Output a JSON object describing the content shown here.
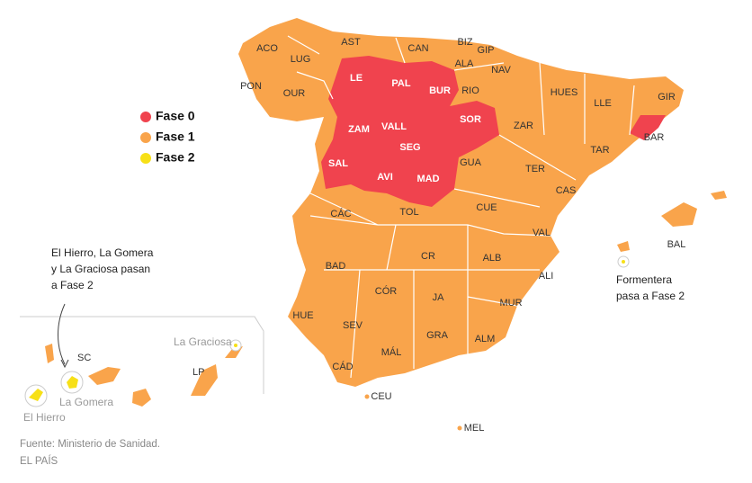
{
  "legend": {
    "items": [
      {
        "label": "Fase 0",
        "color": "#f0434e"
      },
      {
        "label": "Fase 1",
        "color": "#f9a44b"
      },
      {
        "label": "Fase 2",
        "color": "#f7e017"
      }
    ]
  },
  "provinces": [
    "ACO",
    "AST",
    "CAN",
    "BIZ",
    "GIP",
    "ALA",
    "LUG",
    "NAV",
    "PON",
    "OUR",
    "LE",
    "PAL",
    "BUR",
    "RIO",
    "HUES",
    "GIR",
    "LLE",
    "SOR",
    "ZAR",
    "ZAM",
    "VALL",
    "SEG",
    "BAR",
    "TAR",
    "SAL",
    "GUA",
    "TER",
    "AVI",
    "MAD",
    "CAS",
    "CÁC",
    "TOL",
    "CUE",
    "BAL",
    "VAL",
    "BAD",
    "CR",
    "ALB",
    "ALI",
    "CÓR",
    "JA",
    "MUR",
    "HUE",
    "SEV",
    "GRA",
    "ALM",
    "MÁL",
    "CÁD",
    "CEU",
    "MEL"
  ],
  "islands": [
    "La Graciosa",
    "LP",
    "SC",
    "La Gomera",
    "El Hierro"
  ],
  "canary_note": [
    "El Hierro, La Gomera",
    "y La Graciosa pasan",
    "a Fase 2"
  ],
  "formentera_note": [
    "Formentera",
    "pasa a Fase 2"
  ],
  "source": [
    "Fuente: Ministerio de Sanidad.",
    "EL PAÍS"
  ]
}
